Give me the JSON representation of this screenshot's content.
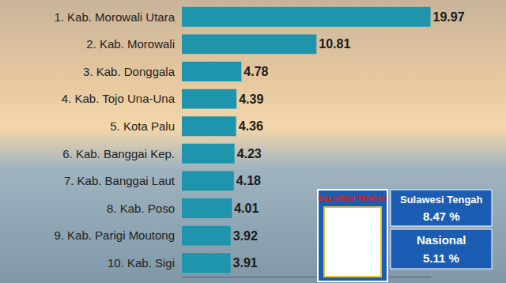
{
  "chart_data": {
    "type": "bar",
    "orientation": "horizontal",
    "categories": [
      "1. Kab. Morowali Utara",
      "2. Kab. Morowali",
      "3. Kab. Donggala",
      "4. Kab. Tojo Una-Una",
      "5. Kota Palu",
      "6. Kab. Banggai Kep.",
      "7. Kab. Banggai Laut",
      "8. Kab. Poso",
      "9. Kab. Parigi Moutong",
      "10. Kab. Sigi"
    ],
    "values": [
      19.97,
      10.81,
      4.78,
      4.39,
      4.36,
      4.23,
      4.18,
      4.01,
      3.92,
      3.91
    ],
    "color": "#1e95ad",
    "xlim": [
      0,
      20
    ],
    "xticks": [],
    "data_labels": true,
    "tick_labels": "y",
    "grid": false,
    "annotations": [
      "SULAWESI TENGAH",
      "Sulawesi Tengah",
      "8.47 %",
      "Nasional",
      "5.11 %"
    ]
  }
}
